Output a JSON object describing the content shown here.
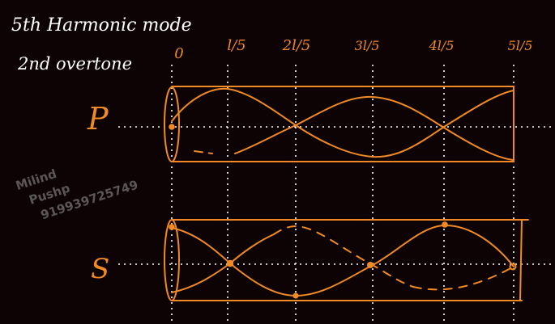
{
  "header": {
    "mode_line": "5th Harmonic mode",
    "overtone_line": "2nd overtone"
  },
  "tick_labels": [
    "0",
    "l/5",
    "2l/5",
    "3l/5",
    "4l/5",
    "5l/5"
  ],
  "rows": [
    {
      "label": "P"
    },
    {
      "label": "S"
    }
  ],
  "watermark": {
    "line1": "Milind",
    "line2": "Pushp",
    "line3": "919939725749"
  },
  "colors": {
    "background": "#0d0304",
    "ink_white": "#ffffff",
    "ink_orange": "#f08a24",
    "watermark": "#5b5658"
  }
}
